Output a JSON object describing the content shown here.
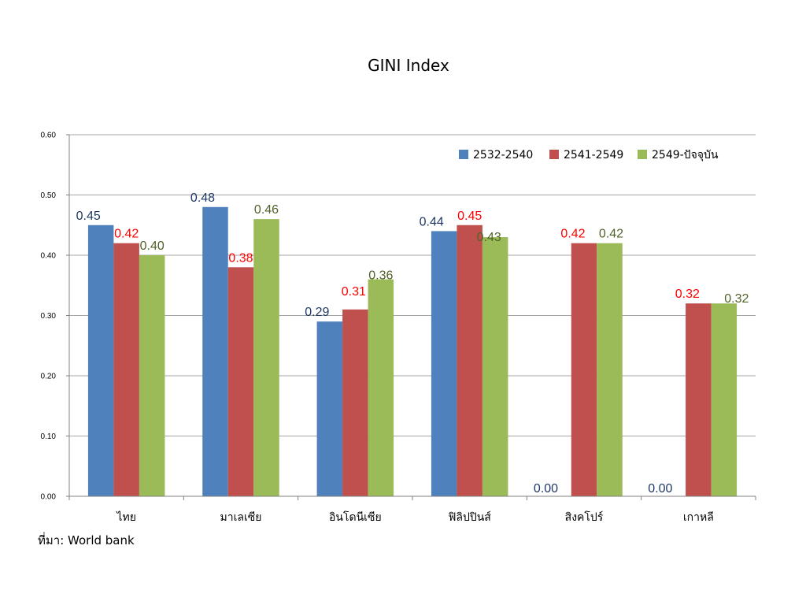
{
  "chart_data": {
    "type": "bar",
    "title": "GINI Index",
    "categories": [
      "ไทย",
      "มาเลเซีย",
      "อินโดนีเซีย",
      "ฟิลิปปินส์",
      "สิงคโปร์",
      "เกาหลี"
    ],
    "series": [
      {
        "name": "2532-2540",
        "color": "#4f81bd",
        "label_color": "#1f3864",
        "values": [
          0.45,
          0.48,
          0.29,
          0.44,
          0.0,
          0.0
        ],
        "labels": [
          "0.45",
          "0.48",
          "0.29",
          "0.44",
          "0.00",
          "0.00"
        ]
      },
      {
        "name": "2541-2549",
        "color": "#c0504d",
        "label_color": "#ff0000",
        "values": [
          0.42,
          0.38,
          0.31,
          0.45,
          0.42,
          0.32
        ],
        "labels": [
          "0.42",
          "0.38",
          "0.31",
          "0.45",
          "0.42",
          "0.32"
        ]
      },
      {
        "name": "2549-ปัจจุบัน",
        "color": "#9bbb59",
        "label_color": "#4f6228",
        "values": [
          0.4,
          0.46,
          0.36,
          0.43,
          0.42,
          0.32
        ],
        "labels": [
          "0.40",
          "0.46",
          "0.36",
          "0.43",
          "0.42",
          "0.32"
        ]
      }
    ],
    "ylim": [
      0,
      0.6
    ],
    "yticks": [
      "0.00",
      "0.10",
      "0.20",
      "0.30",
      "0.40",
      "0.50",
      "0.60"
    ],
    "grid": true,
    "legend": "top-right"
  },
  "source": "ที่มา: World bank"
}
